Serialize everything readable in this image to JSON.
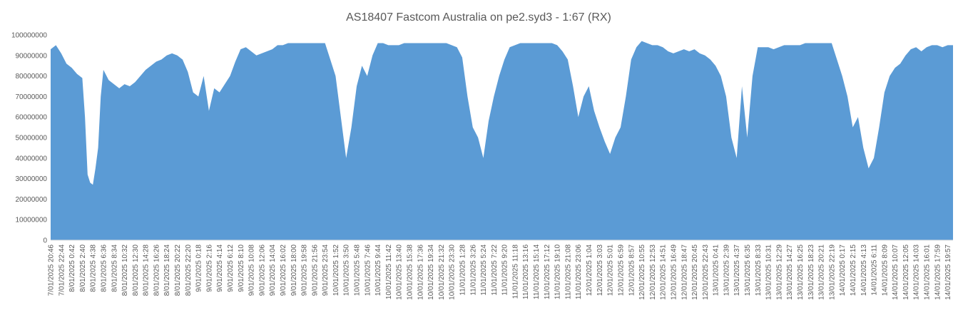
{
  "chart_data": {
    "type": "area",
    "title": "AS18407 Fastcom Australia on pe2.syd3 - 1:67 (RX)",
    "xlabel": "",
    "ylabel": "",
    "ylim": [
      0,
      100000000
    ],
    "yticks": [
      0,
      10000000,
      20000000,
      30000000,
      40000000,
      50000000,
      60000000,
      70000000,
      80000000,
      90000000,
      100000000
    ],
    "grid": false,
    "legend": "none",
    "color": "#5b9bd5",
    "xtick_labels": [
      "7/01/2025 20:46",
      "7/01/2025 22:44",
      "8/01/2025 0:42",
      "8/01/2025 2:40",
      "8/01/2025 4:38",
      "8/01/2025 6:36",
      "8/01/2025 8:34",
      "8/01/2025 10:32",
      "8/01/2025 12:30",
      "8/01/2025 14:28",
      "8/01/2025 16:26",
      "8/01/2025 18:24",
      "8/01/2025 20:22",
      "8/01/2025 22:20",
      "9/01/2025 0:18",
      "9/01/2025 2:16",
      "9/01/2025 4:14",
      "9/01/2025 6:12",
      "9/01/2025 8:10",
      "9/01/2025 10:08",
      "9/01/2025 12:06",
      "9/01/2025 14:04",
      "9/01/2025 16:02",
      "9/01/2025 18:00",
      "9/01/2025 19:58",
      "9/01/2025 21:56",
      "9/01/2025 23:54",
      "10/01/2025 1:52",
      "10/01/2025 3:50",
      "10/01/2025 5:48",
      "10/01/2025 7:46",
      "10/01/2025 9:44",
      "10/01/2025 11:42",
      "10/01/2025 13:40",
      "10/01/2025 15:38",
      "10/01/2025 17:36",
      "10/01/2025 19:34",
      "10/01/2025 21:32",
      "10/01/2025 23:30",
      "11/01/2025 1:28",
      "11/01/2025 3:26",
      "11/01/2025 5:24",
      "11/01/2025 7:22",
      "11/01/2025 9:20",
      "11/01/2025 11:18",
      "11/01/2025 13:16",
      "11/01/2025 15:14",
      "11/01/2025 17:12",
      "11/01/2025 19:10",
      "11/01/2025 21:08",
      "11/01/2025 23:06",
      "12/01/2025 1:04",
      "12/01/2025 3:03",
      "12/01/2025 5:01",
      "12/01/2025 6:59",
      "12/01/2025 8:57",
      "12/01/2025 10:55",
      "12/01/2025 12:53",
      "12/01/2025 14:51",
      "12/01/2025 16:49",
      "12/01/2025 18:47",
      "12/01/2025 20:45",
      "12/01/2025 22:43",
      "13/01/2025 0:41",
      "13/01/2025 2:39",
      "13/01/2025 4:37",
      "13/01/2025 6:35",
      "13/01/2025 8:33",
      "13/01/2025 10:31",
      "13/01/2025 12:29",
      "13/01/2025 14:27",
      "13/01/2025 16:25",
      "13/01/2025 18:23",
      "13/01/2025 20:21",
      "13/01/2025 22:19",
      "14/01/2025 0:17",
      "14/01/2025 2:15",
      "14/01/2025 4:13",
      "14/01/2025 6:11",
      "14/01/2025 8:09",
      "14/01/2025 10:07",
      "14/01/2025 12:05",
      "14/01/2025 14:03",
      "14/01/2025 16:01",
      "14/01/2025 17:59",
      "14/01/2025 19:57"
    ],
    "series": [
      {
        "x": [
          "7/01/2025 20:46",
          "7/01/2025 21:45",
          "7/01/2025 22:44",
          "7/01/2025 23:43",
          "8/01/2025 0:42",
          "8/01/2025 1:41",
          "8/01/2025 2:40",
          "8/01/2025 3:10",
          "8/01/2025 3:39",
          "8/01/2025 4:08",
          "8/01/2025 4:38",
          "8/01/2025 5:07",
          "8/01/2025 5:37",
          "8/01/2025 6:06",
          "8/01/2025 6:36",
          "8/01/2025 7:35",
          "8/01/2025 8:34",
          "8/01/2025 9:33",
          "8/01/2025 10:32",
          "8/01/2025 11:31",
          "8/01/2025 12:30",
          "8/01/2025 13:29",
          "8/01/2025 14:28",
          "8/01/2025 15:27",
          "8/01/2025 16:26",
          "8/01/2025 17:25",
          "8/01/2025 18:24",
          "8/01/2025 19:23",
          "8/01/2025 20:22",
          "8/01/2025 21:21",
          "8/01/2025 22:20",
          "8/01/2025 23:19",
          "9/01/2025 0:18",
          "9/01/2025 1:17",
          "9/01/2025 2:16",
          "9/01/2025 3:15",
          "9/01/2025 4:14",
          "9/01/2025 5:13",
          "9/01/2025 6:12",
          "9/01/2025 7:11",
          "9/01/2025 8:10",
          "9/01/2025 9:09",
          "9/01/2025 10:08",
          "9/01/2025 11:07",
          "9/01/2025 12:06",
          "9/01/2025 13:05",
          "9/01/2025 14:04",
          "9/01/2025 15:03",
          "9/01/2025 16:02",
          "9/01/2025 17:01",
          "9/01/2025 18:00",
          "9/01/2025 18:59",
          "9/01/2025 19:58",
          "9/01/2025 20:57",
          "9/01/2025 21:56",
          "9/01/2025 22:55",
          "9/01/2025 23:54",
          "10/01/2025 0:53",
          "10/01/2025 1:52",
          "10/01/2025 2:51",
          "10/01/2025 3:50",
          "10/01/2025 4:49",
          "10/01/2025 5:48",
          "10/01/2025 6:47",
          "10/01/2025 7:46",
          "10/01/2025 8:45",
          "10/01/2025 9:44",
          "10/01/2025 10:43",
          "10/01/2025 11:42",
          "10/01/2025 12:41",
          "10/01/2025 13:40",
          "10/01/2025 14:39",
          "10/01/2025 15:38",
          "10/01/2025 16:37",
          "10/01/2025 17:36",
          "10/01/2025 18:35",
          "10/01/2025 19:34",
          "10/01/2025 20:33",
          "10/01/2025 21:32",
          "10/01/2025 22:31",
          "10/01/2025 23:30",
          "11/01/2025 0:29",
          "11/01/2025 1:28",
          "11/01/2025 2:27",
          "11/01/2025 3:26",
          "11/01/2025 4:25",
          "11/01/2025 5:24",
          "11/01/2025 6:23",
          "11/01/2025 7:22",
          "11/01/2025 8:21",
          "11/01/2025 9:20",
          "11/01/2025 10:19",
          "11/01/2025 11:18",
          "11/01/2025 12:17",
          "11/01/2025 13:16",
          "11/01/2025 14:15",
          "11/01/2025 15:14",
          "11/01/2025 16:13",
          "11/01/2025 17:12",
          "11/01/2025 18:11",
          "11/01/2025 19:10",
          "11/01/2025 20:09",
          "11/01/2025 21:08",
          "11/01/2025 22:07",
          "11/01/2025 23:06",
          "12/01/2025 0:05",
          "12/01/2025 1:04",
          "12/01/2025 2:03",
          "12/01/2025 3:03",
          "12/01/2025 4:02",
          "12/01/2025 5:01",
          "12/01/2025 6:00",
          "12/01/2025 6:59",
          "12/01/2025 7:58",
          "12/01/2025 8:57",
          "12/01/2025 9:56",
          "12/01/2025 10:55",
          "12/01/2025 11:54",
          "12/01/2025 12:53",
          "12/01/2025 13:52",
          "12/01/2025 14:51",
          "12/01/2025 15:50",
          "12/01/2025 16:49",
          "12/01/2025 17:48",
          "12/01/2025 18:47",
          "12/01/2025 19:46",
          "12/01/2025 20:45",
          "12/01/2025 21:44",
          "12/01/2025 22:43",
          "12/01/2025 23:42",
          "13/01/2025 0:41",
          "13/01/2025 1:40",
          "13/01/2025 2:39",
          "13/01/2025 3:38",
          "13/01/2025 4:37",
          "13/01/2025 5:36",
          "13/01/2025 6:35",
          "13/01/2025 7:34",
          "13/01/2025 8:33",
          "13/01/2025 9:32",
          "13/01/2025 10:31",
          "13/01/2025 11:30",
          "13/01/2025 12:29",
          "13/01/2025 13:28",
          "13/01/2025 14:27",
          "13/01/2025 15:26",
          "13/01/2025 16:25",
          "13/01/2025 17:24",
          "13/01/2025 18:23",
          "13/01/2025 19:22",
          "13/01/2025 20:21",
          "13/01/2025 21:20",
          "13/01/2025 22:19",
          "13/01/2025 23:18",
          "14/01/2025 0:17",
          "14/01/2025 1:16",
          "14/01/2025 2:15",
          "14/01/2025 3:14",
          "14/01/2025 4:13",
          "14/01/2025 5:12",
          "14/01/2025 6:11",
          "14/01/2025 7:10",
          "14/01/2025 8:09",
          "14/01/2025 9:08",
          "14/01/2025 10:07",
          "14/01/2025 11:06",
          "14/01/2025 12:05",
          "14/01/2025 13:04",
          "14/01/2025 14:03",
          "14/01/2025 15:02",
          "14/01/2025 16:01",
          "14/01/2025 17:00",
          "14/01/2025 17:59",
          "14/01/2025 18:58",
          "14/01/2025 19:57",
          "14/01/2025 20:56"
        ],
        "values": [
          93000000,
          95000000,
          91000000,
          86000000,
          84000000,
          81000000,
          79000000,
          60000000,
          32000000,
          28000000,
          27000000,
          35000000,
          45000000,
          70000000,
          83000000,
          78000000,
          76000000,
          74000000,
          76000000,
          75000000,
          77000000,
          80000000,
          83000000,
          85000000,
          87000000,
          88000000,
          90000000,
          91000000,
          90000000,
          88000000,
          82000000,
          72000000,
          70000000,
          80000000,
          63000000,
          74000000,
          72000000,
          76000000,
          80000000,
          87000000,
          93000000,
          94000000,
          92000000,
          90000000,
          91000000,
          92000000,
          93000000,
          95000000,
          95000000,
          96000000,
          96000000,
          96000000,
          96000000,
          96000000,
          96000000,
          96000000,
          96000000,
          88000000,
          80000000,
          60000000,
          40000000,
          55000000,
          75000000,
          85000000,
          80000000,
          90000000,
          96000000,
          96000000,
          95000000,
          95000000,
          95000000,
          96000000,
          96000000,
          96000000,
          96000000,
          96000000,
          96000000,
          96000000,
          96000000,
          96000000,
          95000000,
          94000000,
          89000000,
          70000000,
          55000000,
          50000000,
          40000000,
          58000000,
          70000000,
          80000000,
          88000000,
          94000000,
          95000000,
          96000000,
          96000000,
          96000000,
          96000000,
          96000000,
          96000000,
          96000000,
          95000000,
          92000000,
          88000000,
          75000000,
          60000000,
          70000000,
          75000000,
          63000000,
          55000000,
          48000000,
          42000000,
          50000000,
          55000000,
          70000000,
          88000000,
          94000000,
          97000000,
          96000000,
          95000000,
          95000000,
          94000000,
          92000000,
          91000000,
          92000000,
          93000000,
          92000000,
          93000000,
          91000000,
          90000000,
          88000000,
          85000000,
          80000000,
          70000000,
          50000000,
          40000000,
          75000000,
          50000000,
          80000000,
          94000000,
          94000000,
          94000000,
          93000000,
          94000000,
          95000000,
          95000000,
          95000000,
          95000000,
          96000000,
          96000000,
          96000000,
          96000000,
          96000000,
          96000000,
          88000000,
          80000000,
          70000000,
          55000000,
          60000000,
          45000000,
          35000000,
          40000000,
          55000000,
          72000000,
          80000000,
          84000000,
          86000000,
          90000000,
          93000000,
          94000000,
          92000000,
          94000000,
          95000000,
          95000000,
          94000000,
          95000000,
          95000000
        ]
      }
    ]
  }
}
